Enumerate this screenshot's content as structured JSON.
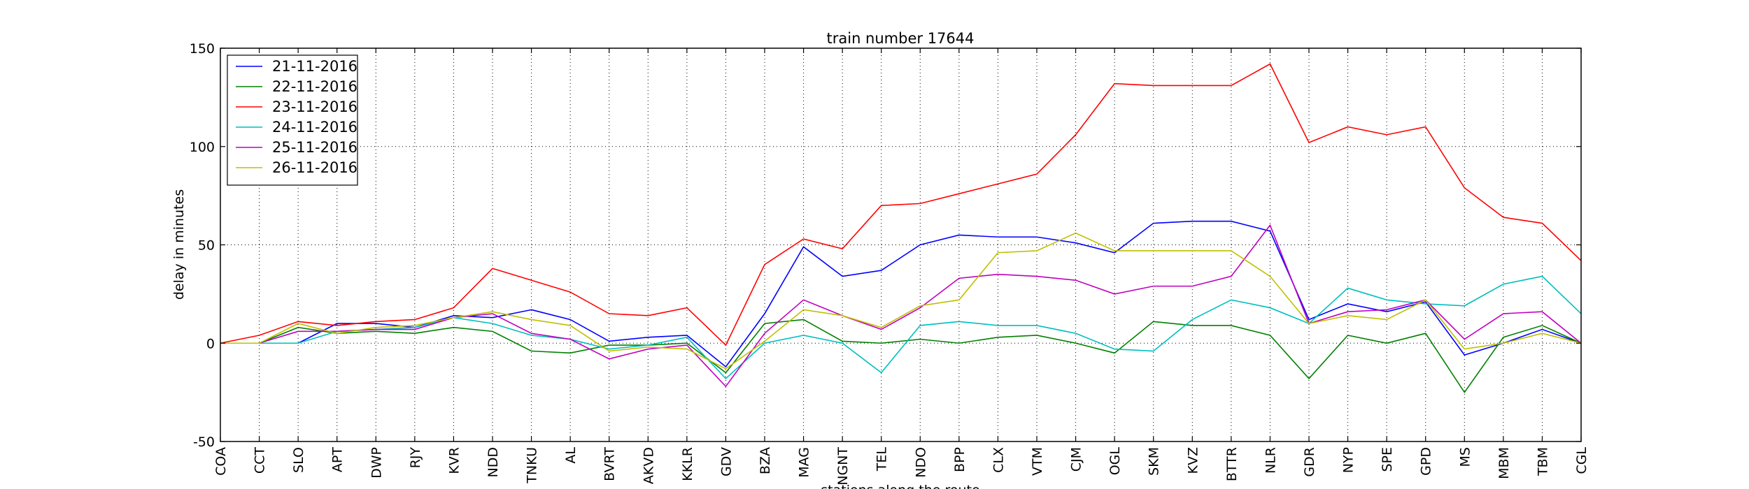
{
  "chart_data": {
    "type": "line",
    "title": "train number 17644",
    "xlabel": "stations along the route",
    "ylabel": "delay in minutes",
    "ylim": [
      -50,
      150
    ],
    "yticks": [
      -50,
      0,
      50,
      100,
      150
    ],
    "grid": true,
    "legend_position": "top-left",
    "categories": [
      "COA",
      "CCT",
      "SLO",
      "APT",
      "DWP",
      "RJY",
      "KVR",
      "NDD",
      "TNKU",
      "AL",
      "BVRT",
      "AKVD",
      "KKLR",
      "GDV",
      "BZA",
      "MAG",
      "NGNT",
      "TEL",
      "NDO",
      "BPP",
      "CLX",
      "VTM",
      "CJM",
      "OGL",
      "SKM",
      "KVZ",
      "BTTR",
      "NLR",
      "GDR",
      "NYP",
      "SPE",
      "GPD",
      "MS",
      "MBM",
      "TBM",
      "CGL"
    ],
    "series": [
      {
        "name": "21-11-2016",
        "color": "#0000ff",
        "values": [
          0,
          0,
          0,
          10,
          10,
          8,
          14,
          13,
          17,
          12,
          1,
          3,
          4,
          -12,
          15,
          49,
          34,
          37,
          50,
          55,
          54,
          54,
          51,
          46,
          61,
          62,
          62,
          57,
          12,
          20,
          16,
          21,
          -6,
          0,
          7,
          0
        ]
      },
      {
        "name": "22-11-2016",
        "color": "#008000",
        "values": [
          0,
          0,
          8,
          5,
          6,
          5,
          8,
          6,
          -4,
          -5,
          -1,
          -1,
          0,
          -15,
          10,
          12,
          1,
          0,
          2,
          0,
          3,
          4,
          0,
          -5,
          11,
          9,
          9,
          4,
          -18,
          4,
          0,
          5,
          -25,
          3,
          9,
          0
        ]
      },
      {
        "name": "23-11-2016",
        "color": "#ff0000",
        "values": [
          0,
          4,
          11,
          9,
          11,
          12,
          18,
          38,
          32,
          26,
          15,
          14,
          18,
          -1,
          40,
          53,
          48,
          70,
          71,
          76,
          81,
          86,
          106,
          132,
          131,
          131,
          131,
          142,
          102,
          110,
          106,
          110,
          79,
          64,
          61,
          42
        ]
      },
      {
        "name": "24-11-2016",
        "color": "#00bfbf",
        "values": [
          0,
          0,
          0,
          6,
          7,
          8,
          13,
          10,
          4,
          2,
          -3,
          -1,
          3,
          -18,
          0,
          4,
          0,
          -15,
          9,
          11,
          9,
          9,
          5,
          -3,
          -4,
          12,
          22,
          18,
          10,
          28,
          22,
          20,
          19,
          30,
          34,
          15
        ]
      },
      {
        "name": "25-11-2016",
        "color": "#bf00bf",
        "values": [
          0,
          0,
          6,
          6,
          7,
          7,
          13,
          15,
          5,
          2,
          -8,
          -3,
          -1,
          -22,
          5,
          22,
          14,
          7,
          18,
          33,
          35,
          34,
          32,
          25,
          29,
          29,
          34,
          60,
          10,
          16,
          17,
          22,
          2,
          15,
          16,
          0
        ]
      },
      {
        "name": "26-11-2016",
        "color": "#bfbf00",
        "values": [
          0,
          0,
          10,
          5,
          8,
          9,
          13,
          16,
          12,
          9,
          -4,
          -2,
          -3,
          -13,
          1,
          17,
          14,
          8,
          19,
          22,
          46,
          47,
          56,
          47,
          47,
          47,
          47,
          34,
          10,
          14,
          12,
          22,
          -3,
          0,
          5,
          0
        ]
      }
    ]
  }
}
